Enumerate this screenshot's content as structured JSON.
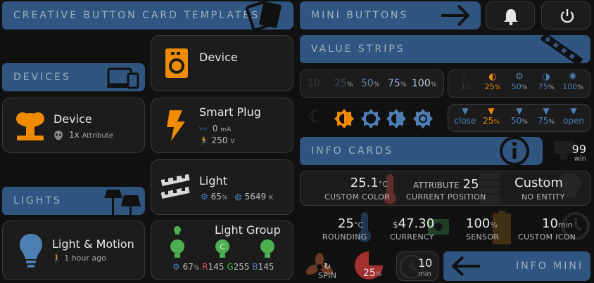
{
  "headers": {
    "templates": "CREATIVE BUTTON CARD TEMPLATES",
    "devices": "DEVICES",
    "lights": "LIGHTS",
    "mini_buttons": "MINI BUTTONS",
    "value_strips": "VALUE STRIPS",
    "info_cards": "INFO CARDS",
    "info_mini": "INFO MINI"
  },
  "device_card_top": {
    "label": "Device"
  },
  "device_card": {
    "label": "Device",
    "count": "1x",
    "attribute": "Attribute"
  },
  "smart_plug": {
    "label": "Smart Plug",
    "current": "0",
    "current_unit": "mA",
    "voltage": "250",
    "voltage_unit": "V"
  },
  "light_card": {
    "label": "Light",
    "brightness": "65",
    "brightness_unit": "%",
    "temp": "5649",
    "temp_unit": "K"
  },
  "light_motion": {
    "label": "Light & Motion",
    "last": "1 hour ago"
  },
  "light_group": {
    "label": "Light Group",
    "bri": "67",
    "bri_unit": "%",
    "r_label": "R",
    "r": "145",
    "g_label": "G",
    "g": "255",
    "b_label": "B",
    "b": "145"
  },
  "strip1": {
    "values": [
      {
        "num": "10",
        "unit": ""
      },
      {
        "num": "25",
        "unit": "%"
      },
      {
        "num": "50",
        "unit": "%"
      },
      {
        "num": "75",
        "unit": "%"
      },
      {
        "num": "100",
        "unit": "%"
      }
    ]
  },
  "strip2": {
    "values": [
      {
        "num": "10",
        "unit": ""
      },
      {
        "num": "25",
        "unit": "%"
      },
      {
        "num": "50",
        "unit": "%"
      },
      {
        "num": "75",
        "unit": "%"
      },
      {
        "num": "100",
        "unit": "%"
      }
    ]
  },
  "strip4": {
    "values": [
      {
        "num": "close",
        "unit": ""
      },
      {
        "num": "25",
        "unit": "%"
      },
      {
        "num": "50",
        "unit": "%"
      },
      {
        "num": "75",
        "unit": "%"
      },
      {
        "num": "open",
        "unit": ""
      }
    ]
  },
  "info_win": {
    "value": "99",
    "unit": "win"
  },
  "info_row1": {
    "color": {
      "value": "25.1",
      "unit": "°C",
      "label": "CUSTOM COLOR"
    },
    "attribute": {
      "prefix": "ATTRIBUTE",
      "value": "25",
      "label": "CURRENT POSITION"
    },
    "custom": {
      "value": "Custom",
      "label": "NO ENTITY"
    }
  },
  "info_row2": {
    "rounding": {
      "value": "25",
      "unit": "°C",
      "label": "ROUNDING"
    },
    "currency": {
      "prefix": "$",
      "value": "47.30",
      "label": "CURRENCY"
    },
    "sensor": {
      "value": "100",
      "unit": "%",
      "label": "SENSOR"
    },
    "icon": {
      "value": "10",
      "unit": "min",
      "label": "CUSTOM ICON"
    }
  },
  "info_row3": {
    "spin": {
      "label": "SPIN"
    },
    "pie": {
      "value": "25",
      "unit": "%"
    },
    "clock": {
      "value": "10",
      "unit": "min"
    }
  },
  "colors": {
    "header": "#2f5580",
    "accent_blue": "#4e7fb4",
    "accent_orange": "#f08a00",
    "card": "#1c1c1c"
  }
}
